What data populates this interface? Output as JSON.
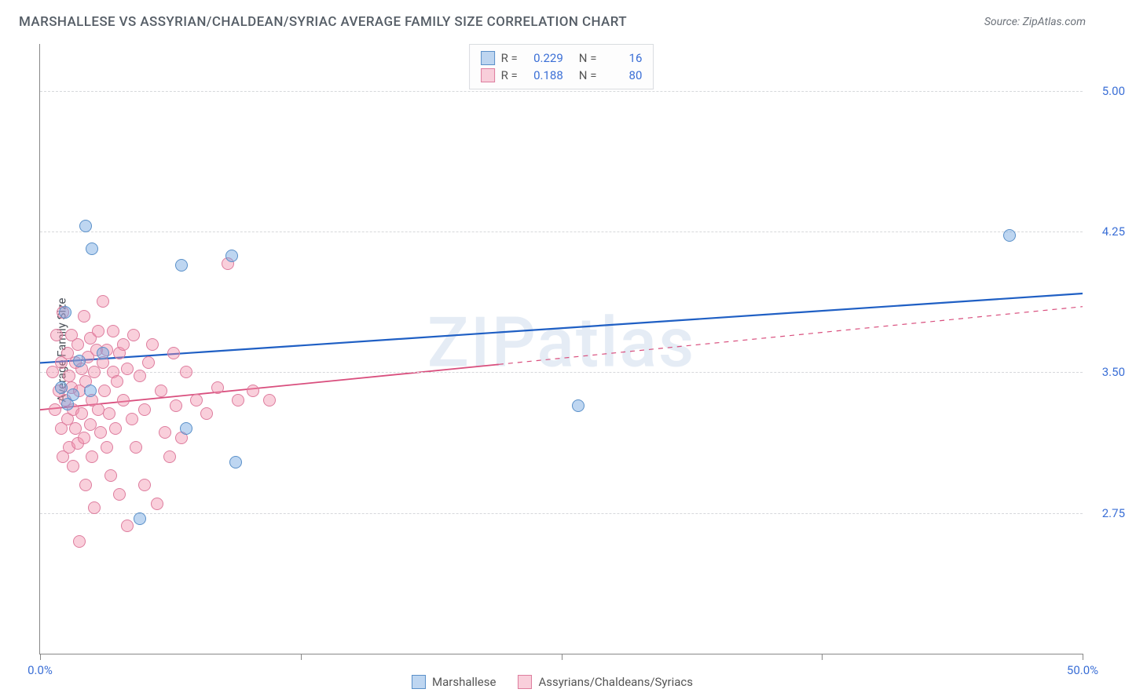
{
  "header": {
    "title": "MARSHALLESE VS ASSYRIAN/CHALDEAN/SYRIAC AVERAGE FAMILY SIZE CORRELATION CHART",
    "source": "Source: ZipAtlas.com"
  },
  "watermark": "ZIPatlas",
  "ylabel": "Average Family Size",
  "axes": {
    "xmin": 0,
    "xmax": 50,
    "ymin": 2.0,
    "ymax": 5.25,
    "yticks": [
      2.75,
      3.5,
      4.25,
      5.0
    ],
    "ytick_labels": [
      "2.75",
      "3.50",
      "4.25",
      "5.00"
    ],
    "xticks": [
      0,
      12.5,
      25,
      37.5,
      50
    ],
    "xtick_labels": {
      "0": "0.0%",
      "50": "50.0%"
    }
  },
  "series": {
    "blue": {
      "name": "Marshallese",
      "fill": "rgba(110,165,225,0.45)",
      "stroke": "#5a90c9",
      "line_stroke": "#1f5fc4",
      "line_width": 2.2,
      "marker_r": 8,
      "R": "0.229",
      "N": "16",
      "regression": {
        "x1": 0,
        "y1": 3.55,
        "x2": 50,
        "y2": 3.92,
        "solid_until_x": 50
      },
      "points": [
        [
          1.0,
          3.42
        ],
        [
          1.2,
          3.82
        ],
        [
          1.6,
          3.38
        ],
        [
          2.2,
          4.28
        ],
        [
          2.5,
          4.16
        ],
        [
          4.8,
          2.72
        ],
        [
          6.8,
          4.07
        ],
        [
          7.0,
          3.2
        ],
        [
          9.2,
          4.12
        ],
        [
          9.4,
          3.02
        ],
        [
          25.8,
          3.32
        ],
        [
          46.5,
          4.23
        ],
        [
          1.9,
          3.56
        ],
        [
          3.0,
          3.6
        ],
        [
          2.4,
          3.4
        ],
        [
          1.3,
          3.33
        ]
      ]
    },
    "pink": {
      "name": "Assyrians/Chaldeans/Syriacs",
      "fill": "rgba(240,140,170,0.42)",
      "stroke": "#de7d9e",
      "line_stroke": "#d94f7e",
      "line_width": 1.8,
      "marker_r": 8,
      "R": "0.188",
      "N": "80",
      "regression": {
        "x1": 0,
        "y1": 3.3,
        "x2": 50,
        "y2": 3.85,
        "solid_until_x": 22
      },
      "points": [
        [
          0.6,
          3.5
        ],
        [
          0.7,
          3.3
        ],
        [
          0.8,
          3.7
        ],
        [
          0.9,
          3.4
        ],
        [
          1.0,
          3.2
        ],
        [
          1.0,
          3.55
        ],
        [
          1.1,
          3.05
        ],
        [
          1.1,
          3.82
        ],
        [
          1.2,
          3.35
        ],
        [
          1.3,
          3.6
        ],
        [
          1.3,
          3.25
        ],
        [
          1.4,
          3.48
        ],
        [
          1.4,
          3.1
        ],
        [
          1.5,
          3.42
        ],
        [
          1.5,
          3.7
        ],
        [
          1.6,
          3.3
        ],
        [
          1.6,
          3.0
        ],
        [
          1.7,
          3.55
        ],
        [
          1.7,
          3.2
        ],
        [
          1.8,
          3.65
        ],
        [
          1.8,
          3.12
        ],
        [
          1.9,
          3.4
        ],
        [
          1.9,
          2.6
        ],
        [
          2.0,
          3.52
        ],
        [
          2.0,
          3.28
        ],
        [
          2.1,
          3.8
        ],
        [
          2.1,
          3.15
        ],
        [
          2.2,
          3.45
        ],
        [
          2.2,
          2.9
        ],
        [
          2.3,
          3.58
        ],
        [
          2.4,
          3.22
        ],
        [
          2.4,
          3.68
        ],
        [
          2.5,
          3.35
        ],
        [
          2.5,
          3.05
        ],
        [
          2.6,
          3.5
        ],
        [
          2.6,
          2.78
        ],
        [
          2.7,
          3.62
        ],
        [
          2.8,
          3.3
        ],
        [
          2.8,
          3.72
        ],
        [
          2.9,
          3.18
        ],
        [
          3.0,
          3.55
        ],
        [
          3.0,
          3.88
        ],
        [
          3.1,
          3.4
        ],
        [
          3.2,
          3.1
        ],
        [
          3.2,
          3.62
        ],
        [
          3.3,
          3.28
        ],
        [
          3.4,
          2.95
        ],
        [
          3.5,
          3.5
        ],
        [
          3.5,
          3.72
        ],
        [
          3.6,
          3.2
        ],
        [
          3.7,
          3.45
        ],
        [
          3.8,
          3.6
        ],
        [
          3.8,
          2.85
        ],
        [
          4.0,
          3.35
        ],
        [
          4.0,
          3.65
        ],
        [
          4.2,
          3.52
        ],
        [
          4.2,
          2.68
        ],
        [
          4.4,
          3.25
        ],
        [
          4.5,
          3.7
        ],
        [
          4.6,
          3.1
        ],
        [
          4.8,
          3.48
        ],
        [
          5.0,
          3.3
        ],
        [
          5.0,
          2.9
        ],
        [
          5.2,
          3.55
        ],
        [
          5.4,
          3.65
        ],
        [
          5.6,
          2.8
        ],
        [
          5.8,
          3.4
        ],
        [
          6.0,
          3.18
        ],
        [
          6.2,
          3.05
        ],
        [
          6.4,
          3.6
        ],
        [
          6.5,
          3.32
        ],
        [
          6.8,
          3.15
        ],
        [
          7.0,
          3.5
        ],
        [
          7.5,
          3.35
        ],
        [
          8.0,
          3.28
        ],
        [
          8.5,
          3.42
        ],
        [
          9.0,
          4.08
        ],
        [
          9.5,
          3.35
        ],
        [
          10.2,
          3.4
        ],
        [
          11.0,
          3.35
        ]
      ]
    }
  }
}
